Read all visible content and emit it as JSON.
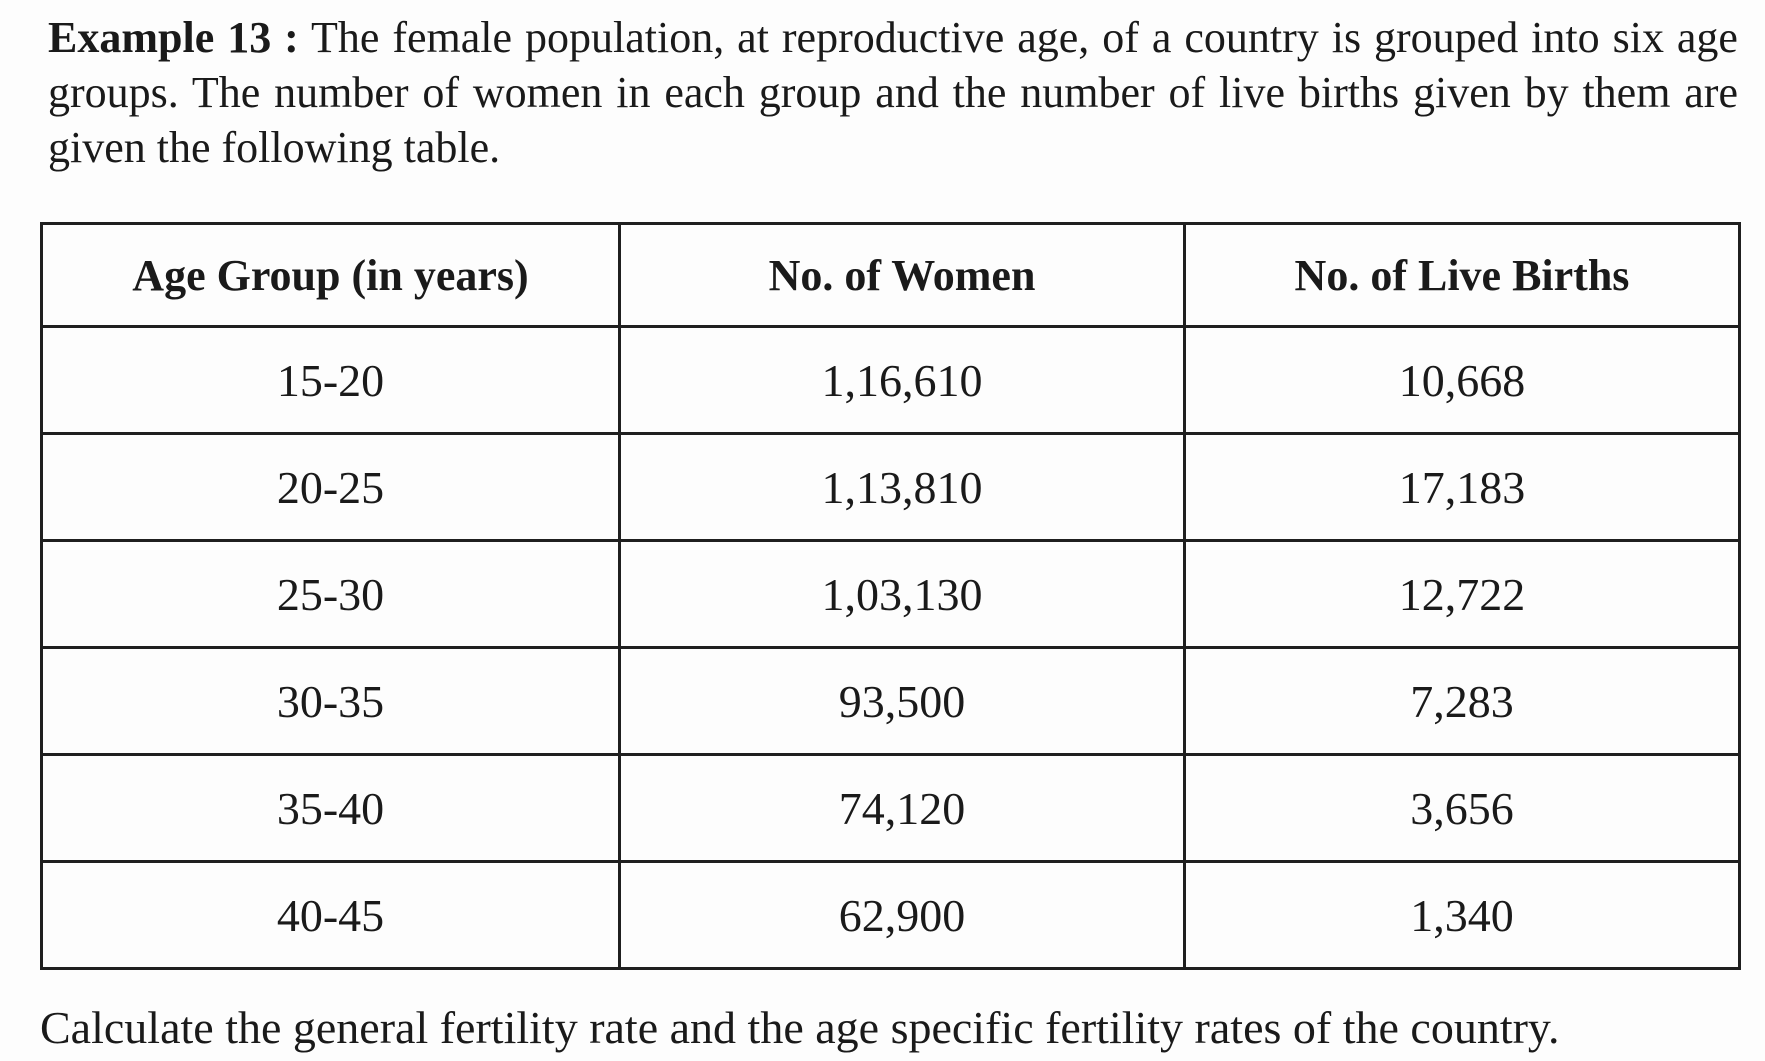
{
  "example": {
    "label": "Example 13 :",
    "text": "The female population, at reproductive age, of a country is grouped into six age groups. The number of women in each group and the number of live births given by them are given the following table."
  },
  "table": {
    "headers": [
      "Age Group (in years)",
      "No. of Women",
      "No. of Live Births"
    ],
    "rows": [
      [
        "15-20",
        "1,16,610",
        "10,668"
      ],
      [
        "20-25",
        "1,13,810",
        "17,183"
      ],
      [
        "25-30",
        "1,03,130",
        "12,722"
      ],
      [
        "30-35",
        "93,500",
        "7,283"
      ],
      [
        "35-40",
        "74,120",
        "3,656"
      ],
      [
        "40-45",
        "62,900",
        "1,340"
      ]
    ]
  },
  "question": "Calculate the general fertility rate and the age specific fertility rates of the country."
}
